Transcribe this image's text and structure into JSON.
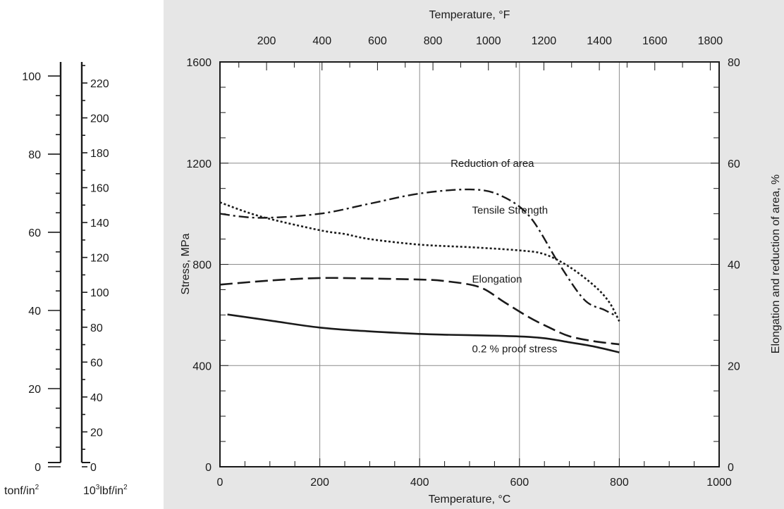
{
  "chart_data": {
    "type": "line",
    "x_axis_bottom": {
      "label": "Temperature, °C",
      "range": [
        0,
        1000
      ],
      "ticks": [
        0,
        200,
        400,
        600,
        800,
        1000
      ]
    },
    "x_axis_top": {
      "label": "Temperature, °F",
      "ticks": [
        200,
        400,
        600,
        800,
        1000,
        1200,
        1400,
        1600,
        1800
      ]
    },
    "y_axis_left": {
      "label": "Stress, MPa",
      "range": [
        0,
        1600
      ],
      "ticks": [
        0,
        400,
        800,
        1200,
        1600
      ]
    },
    "y_axis_right": {
      "label": "Elongation and reduction of area, %",
      "range": [
        0,
        80
      ],
      "ticks": [
        0,
        20,
        40,
        60,
        80
      ]
    },
    "scale_tonf": {
      "unit_main": "tonf/in",
      "unit_sup": "2",
      "ticks": [
        0,
        20,
        40,
        60,
        80,
        100
      ]
    },
    "scale_lbf": {
      "unit_prefix": "10",
      "unit_sup1": "3",
      "unit_mid": "lbf/in",
      "unit_sup2": "2",
      "ticks": [
        0,
        20,
        40,
        60,
        80,
        100,
        120,
        140,
        160,
        180,
        200,
        220
      ]
    },
    "series": [
      {
        "name": "Reduction of area",
        "axis": "right",
        "style": "dashdot",
        "points": [
          [
            0,
            50
          ],
          [
            80,
            49.2
          ],
          [
            200,
            50
          ],
          [
            300,
            52
          ],
          [
            400,
            54
          ],
          [
            500,
            54.8
          ],
          [
            560,
            53.7
          ],
          [
            620,
            49.5
          ],
          [
            680,
            40
          ],
          [
            730,
            33
          ],
          [
            770,
            31
          ],
          [
            790,
            30
          ]
        ]
      },
      {
        "name": "Tensile Strength",
        "axis": "left",
        "style": "dotted",
        "points": [
          [
            0,
            1045
          ],
          [
            80,
            990
          ],
          [
            200,
            935
          ],
          [
            250,
            920
          ],
          [
            300,
            900
          ],
          [
            400,
            878
          ],
          [
            500,
            868
          ],
          [
            600,
            855
          ],
          [
            650,
            840
          ],
          [
            700,
            790
          ],
          [
            750,
            715
          ],
          [
            780,
            650
          ],
          [
            800,
            575
          ]
        ]
      },
      {
        "name": "Elongation",
        "axis": "right",
        "style": "dashed",
        "points": [
          [
            0,
            36
          ],
          [
            100,
            36.8
          ],
          [
            200,
            37.3
          ],
          [
            300,
            37.2
          ],
          [
            400,
            37
          ],
          [
            450,
            36.7
          ],
          [
            520,
            35.5
          ],
          [
            570,
            32.5
          ],
          [
            620,
            29.5
          ],
          [
            660,
            27.5
          ],
          [
            700,
            25.8
          ],
          [
            750,
            24.8
          ],
          [
            800,
            24.2
          ]
        ]
      },
      {
        "name": "0.2 % proof stress",
        "axis": "left",
        "style": "solid",
        "points": [
          [
            15,
            602
          ],
          [
            100,
            578
          ],
          [
            200,
            550
          ],
          [
            300,
            535
          ],
          [
            400,
            525
          ],
          [
            450,
            522
          ],
          [
            500,
            520
          ],
          [
            600,
            515
          ],
          [
            650,
            508
          ],
          [
            700,
            492
          ],
          [
            750,
            475
          ],
          [
            800,
            452
          ]
        ]
      }
    ],
    "annotations": [
      {
        "text": "Reduction of area",
        "x": 462,
        "y": 1185
      },
      {
        "text": "Tensile Strength",
        "x": 505,
        "y": 1000
      },
      {
        "text": "Elongation",
        "x": 505,
        "y": 728
      },
      {
        "text": "0.2 % proof stress",
        "x": 505,
        "y": 452
      }
    ],
    "grid": true,
    "colors": {
      "panel": "#e6e6e6",
      "plot": "#ffffff",
      "line": "#1a1a1a",
      "grid": "#8c8c8c"
    }
  }
}
